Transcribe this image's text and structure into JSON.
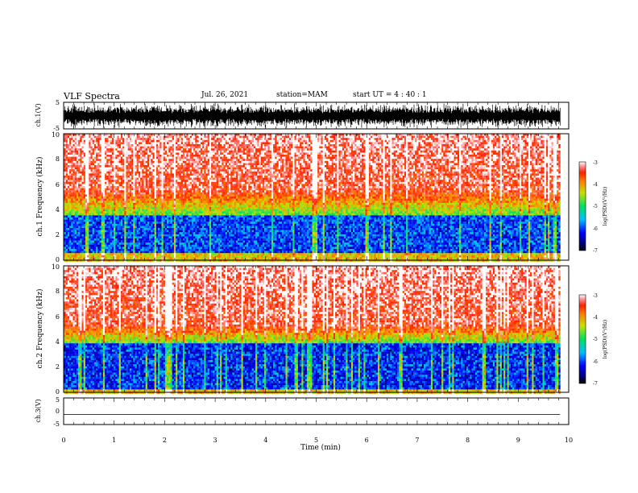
{
  "header": {
    "title": "VLF Spectra",
    "date": "Jul. 26, 2021",
    "station": "station=MAM",
    "start": "start UT = 4 : 40 : 1"
  },
  "chart_data": [
    {
      "type": "line",
      "panel": "ch1-waveform",
      "ylabel": "ch.1(V)",
      "ylim": [
        -5,
        5
      ],
      "yticks": [
        "5",
        "-5"
      ],
      "xlim": [
        0,
        10
      ],
      "x_end": 9.83,
      "note_values": "dense noisy waveform spanning roughly -4 to 4 V with impulsive bursts"
    },
    {
      "type": "heatmap",
      "panel": "ch1-spectrogram",
      "ylabel": "ch.1 Frequency (kHz)",
      "ylim": [
        0,
        10
      ],
      "yticks": [
        "0",
        "2",
        "4",
        "6",
        "8",
        "10"
      ],
      "xlim": [
        0,
        10
      ],
      "x_end": 9.83,
      "colorbar": {
        "label": "log(PSD)(V²/Hz)",
        "range": [
          -7,
          -3
        ],
        "ticks": [
          "-3",
          "-4",
          "-5",
          "-6",
          "-7"
        ]
      },
      "bands_khz": {
        "low_band": [
          0.5,
          3.5
        ],
        "mid_band": [
          3.5,
          5.5
        ],
        "high_band": [
          5.5,
          10
        ]
      },
      "band_levels_log_psd": {
        "low": -6.0,
        "mid": -4.8,
        "high": -3.4
      }
    },
    {
      "type": "heatmap",
      "panel": "ch2-spectrogram",
      "ylabel": "ch.2 Frequency (kHz)",
      "ylim": [
        0,
        10
      ],
      "yticks": [
        "0",
        "2",
        "4",
        "6",
        "8",
        "10"
      ],
      "xlim": [
        0,
        10
      ],
      "x_end": 9.83,
      "colorbar": {
        "label": "log(PSD)(V²/Hz)",
        "range": [
          -7,
          -3
        ],
        "ticks": [
          "-3",
          "-4",
          "-5",
          "-6",
          "-7"
        ]
      },
      "bands_khz": {
        "low_band": [
          0.3,
          3.8
        ],
        "mid_band": [
          3.8,
          5.3
        ],
        "high_band": [
          5.3,
          10
        ]
      },
      "band_levels_log_psd": {
        "low": -6.1,
        "mid": -4.9,
        "high": -3.4
      }
    },
    {
      "type": "line",
      "panel": "ch3-waveform",
      "ylabel": "ch.3(V)",
      "ylim": [
        -5,
        5
      ],
      "yticks": [
        "5",
        "0",
        "-5"
      ],
      "xlim": [
        0,
        10
      ],
      "xticks": [
        "0",
        "1",
        "2",
        "3",
        "4",
        "5",
        "6",
        "7",
        "8",
        "9",
        "10"
      ],
      "xlabel": "Time (min)",
      "x": [
        0,
        9.83
      ],
      "y": [
        -1.2,
        -1.2
      ]
    }
  ]
}
